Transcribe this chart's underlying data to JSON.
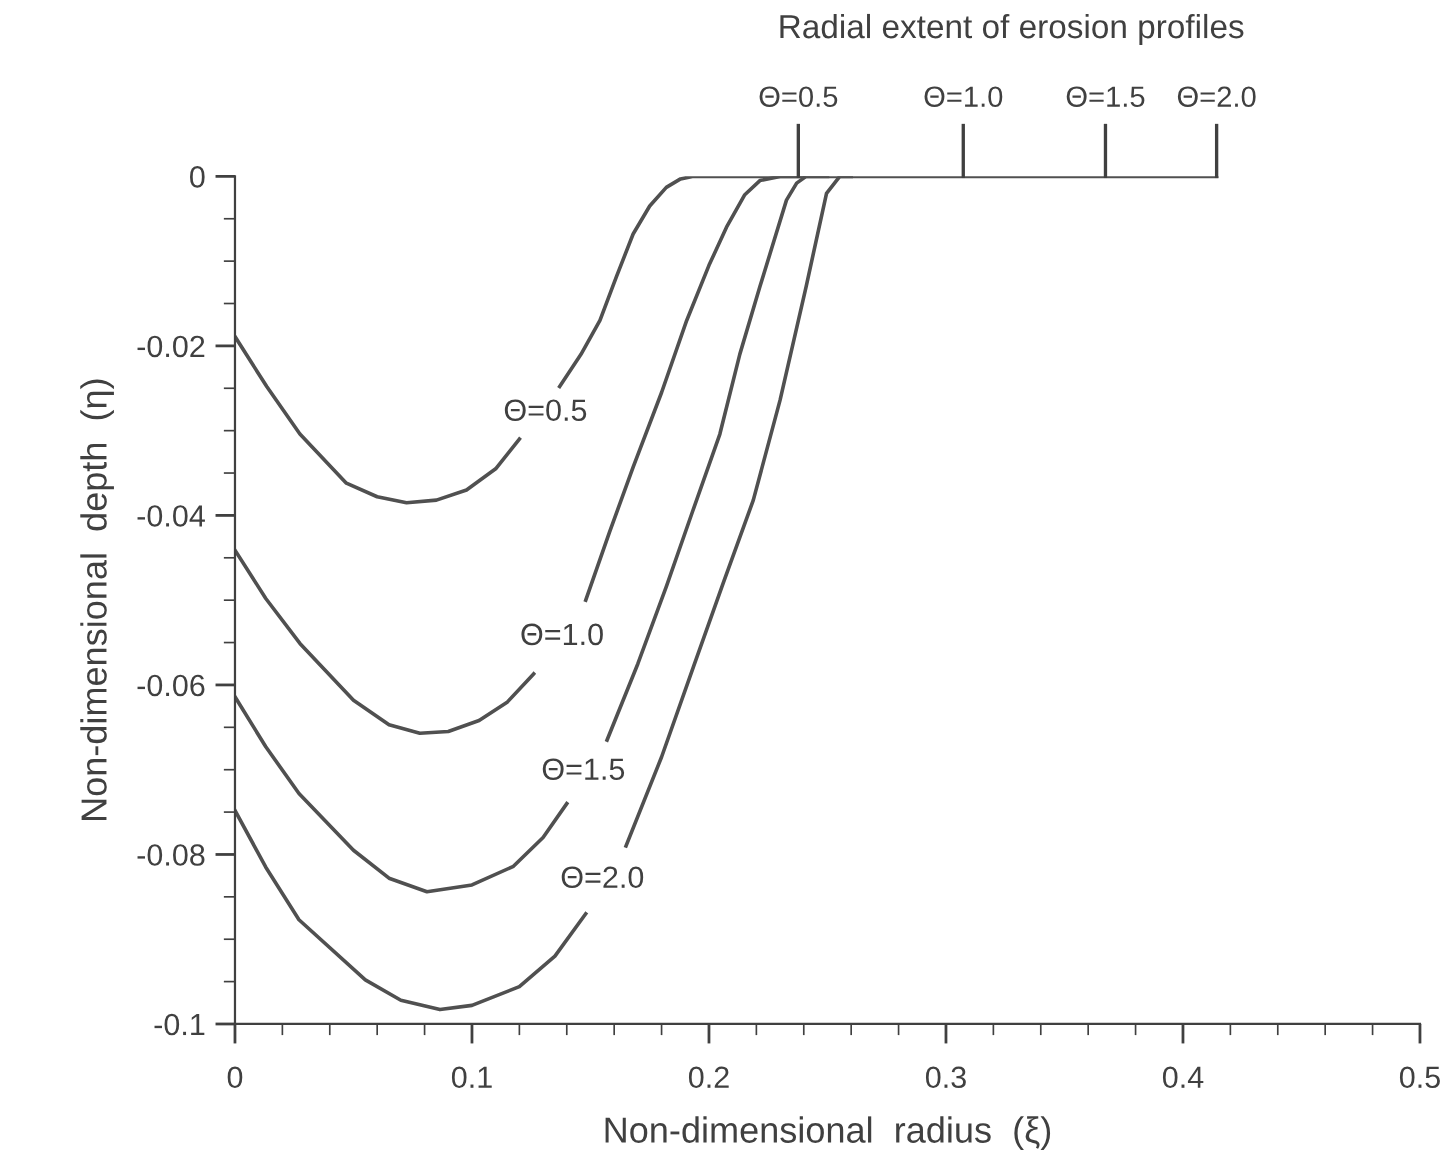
{
  "chart_data": {
    "type": "line",
    "title": "Radial extent of erosion profiles",
    "xlabel": "Non-dimensional  radius  (ξ)",
    "ylabel": "Non-dimensional  depth  (η)",
    "series": [
      {
        "name": "Θ=0.5",
        "color": "#505050",
        "x": [
          0,
          0.0134,
          0.0274,
          0.047,
          0.06,
          0.0724,
          0.085,
          0.0977,
          0.11,
          0.12,
          0.131,
          0.137,
          0.146,
          0.154,
          0.161,
          0.168,
          0.175,
          0.182,
          0.188,
          0.193,
          0.4142
        ],
        "values": [
          -0.0189,
          -0.0248,
          -0.0304,
          -0.0362,
          -0.0378,
          -0.0385,
          -0.0382,
          -0.037,
          -0.0345,
          -0.031,
          null,
          -0.0248,
          -0.021,
          -0.017,
          -0.0118,
          -0.0068,
          -0.0035,
          -0.0013,
          -0.0003,
          0,
          0
        ]
      },
      {
        "name": "Θ=1.0",
        "color": "#505050",
        "x": [
          0,
          0.013,
          0.0274,
          0.05,
          0.065,
          0.078,
          0.09,
          0.103,
          0.115,
          0.126,
          0.138,
          0.148,
          0.158,
          0.168,
          0.18,
          0.1906,
          0.2,
          0.2074,
          0.215,
          0.2215,
          0.23,
          0.24
        ],
        "values": [
          -0.0441,
          -0.0498,
          -0.0551,
          -0.0618,
          -0.0647,
          -0.0657,
          -0.0655,
          -0.0642,
          -0.062,
          -0.0587,
          null,
          -0.05,
          -0.042,
          -0.0343,
          -0.0255,
          -0.017,
          -0.0105,
          -0.006,
          -0.0022,
          -0.0005,
          0,
          0
        ]
      },
      {
        "name": "Θ=1.5",
        "color": "#505050",
        "x": [
          0,
          0.013,
          0.027,
          0.05,
          0.065,
          0.081,
          0.1,
          0.1175,
          0.13,
          0.14,
          0.147,
          0.157,
          0.17,
          0.182,
          0.193,
          0.2046,
          0.213,
          0.2215,
          0.2327,
          0.237,
          0.241,
          0.25
        ],
        "values": [
          -0.0614,
          -0.0673,
          -0.0728,
          -0.0795,
          -0.0828,
          -0.0844,
          -0.0836,
          -0.0814,
          -0.078,
          -0.074,
          null,
          -0.0665,
          -0.0575,
          -0.0484,
          -0.0396,
          -0.0304,
          -0.021,
          -0.013,
          -0.0028,
          -0.0008,
          0,
          0
        ]
      },
      {
        "name": "Θ=2.0",
        "color": "#505050",
        "x": [
          0,
          0.013,
          0.027,
          0.055,
          0.07,
          0.0865,
          0.1,
          0.12,
          0.135,
          0.148,
          0.155,
          0.165,
          0.18,
          0.1934,
          0.206,
          0.2187,
          0.23,
          0.241,
          0.2496,
          0.2552,
          0.26
        ],
        "values": [
          -0.0748,
          -0.0815,
          -0.0877,
          -0.0948,
          -0.0972,
          -0.0983,
          -0.0978,
          -0.0956,
          -0.092,
          -0.087,
          null,
          -0.079,
          -0.0685,
          -0.0579,
          -0.048,
          -0.0382,
          -0.0264,
          -0.013,
          -0.002,
          0,
          0
        ]
      }
    ],
    "annotations": [
      {
        "text": "Θ=0.5",
        "x": 0.2377,
        "y": 0
      },
      {
        "text": "Θ=1.0",
        "x": 0.3073,
        "y": 0
      },
      {
        "text": "Θ=1.5",
        "x": 0.3673,
        "y": 0
      },
      {
        "text": "Θ=2.0",
        "x": 0.4142,
        "y": 0
      }
    ],
    "xlim": [
      0,
      0.5
    ],
    "ylim": [
      -0.1,
      0
    ],
    "xticks": [
      0,
      0.1,
      0.2,
      0.3,
      0.4,
      0.5
    ],
    "yticks": [
      {
        "value": -0.1,
        "label": "-0.1"
      },
      {
        "value": -0.08,
        "label": "-0.08"
      },
      {
        "value": -0.06,
        "label": "-0.06"
      },
      {
        "value": -0.04,
        "label": "-0.04"
      },
      {
        "value": -0.02,
        "label": "-0.02"
      },
      0
    ],
    "grid": false,
    "legend": false,
    "marker": "none",
    "line_style": "solid"
  }
}
